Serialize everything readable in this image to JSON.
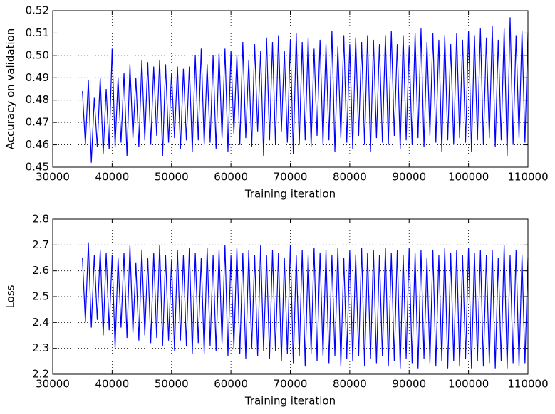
{
  "chart_data": [
    {
      "type": "line",
      "xlabel": "Training iteration",
      "ylabel": "Accuracy on validation",
      "xlim": [
        30000,
        110000
      ],
      "xticks": [
        30000,
        40000,
        50000,
        60000,
        70000,
        80000,
        90000,
        100000,
        110000
      ],
      "ylim": [
        0.45,
        0.52
      ],
      "yticks": [
        0.45,
        0.46,
        0.47,
        0.48,
        0.49,
        {
          "value": 0.5,
          "label": "0.50"
        },
        0.51,
        0.52
      ],
      "grid": true,
      "x": [
        35000,
        35500,
        36000,
        36500,
        37000,
        37500,
        38000,
        38500,
        39000,
        39500,
        40000,
        40500,
        41000,
        41500,
        42000,
        42500,
        43000,
        43500,
        44000,
        44500,
        45000,
        45500,
        46000,
        46500,
        47000,
        47500,
        48000,
        48500,
        49000,
        49500,
        50000,
        50500,
        51000,
        51500,
        52000,
        52500,
        53000,
        53500,
        54000,
        54500,
        55000,
        55500,
        56000,
        56500,
        57000,
        57500,
        58000,
        58500,
        59000,
        59500,
        60000,
        60500,
        61000,
        61500,
        62000,
        62500,
        63000,
        63500,
        64000,
        64500,
        65000,
        65500,
        66000,
        66500,
        67000,
        67500,
        68000,
        68500,
        69000,
        69500,
        70000,
        70500,
        71000,
        71500,
        72000,
        72500,
        73000,
        73500,
        74000,
        74500,
        75000,
        75500,
        76000,
        76500,
        77000,
        77500,
        78000,
        78500,
        79000,
        79500,
        80000,
        80500,
        81000,
        81500,
        82000,
        82500,
        83000,
        83500,
        84000,
        84500,
        85000,
        85500,
        86000,
        86500,
        87000,
        87500,
        88000,
        88500,
        89000,
        89500,
        90000,
        90500,
        91000,
        91500,
        92000,
        92500,
        93000,
        93500,
        94000,
        94500,
        95000,
        95500,
        96000,
        96500,
        97000,
        97500,
        98000,
        98500,
        99000,
        99500,
        100000,
        100500,
        101000,
        101500,
        102000,
        102500,
        103000,
        103500,
        104000,
        104500,
        105000,
        105500,
        106000,
        106500,
        107000,
        107500,
        108000,
        108500,
        109000,
        109500,
        110000
      ],
      "series": [
        {
          "color": "#0000ff",
          "values": [
            0.484,
            0.46,
            0.489,
            0.452,
            0.481,
            0.459,
            0.49,
            0.456,
            0.485,
            0.458,
            0.503,
            0.459,
            0.49,
            0.461,
            0.492,
            0.455,
            0.496,
            0.463,
            0.49,
            0.459,
            0.498,
            0.462,
            0.497,
            0.46,
            0.495,
            0.464,
            0.498,
            0.455,
            0.496,
            0.461,
            0.492,
            0.463,
            0.495,
            0.458,
            0.494,
            0.462,
            0.495,
            0.457,
            0.5,
            0.462,
            0.503,
            0.46,
            0.496,
            0.461,
            0.5,
            0.458,
            0.501,
            0.463,
            0.503,
            0.457,
            0.502,
            0.465,
            0.5,
            0.46,
            0.506,
            0.463,
            0.498,
            0.459,
            0.505,
            0.466,
            0.502,
            0.455,
            0.508,
            0.462,
            0.506,
            0.46,
            0.509,
            0.466,
            0.502,
            0.461,
            0.507,
            0.456,
            0.51,
            0.46,
            0.506,
            0.462,
            0.508,
            0.459,
            0.503,
            0.464,
            0.507,
            0.46,
            0.505,
            0.462,
            0.511,
            0.457,
            0.504,
            0.463,
            0.509,
            0.461,
            0.505,
            0.458,
            0.508,
            0.464,
            0.506,
            0.46,
            0.509,
            0.457,
            0.507,
            0.463,
            0.505,
            0.461,
            0.509,
            0.46,
            0.511,
            0.464,
            0.505,
            0.458,
            0.509,
            0.462,
            0.504,
            0.46,
            0.51,
            0.463,
            0.512,
            0.459,
            0.506,
            0.464,
            0.51,
            0.461,
            0.507,
            0.457,
            0.509,
            0.462,
            0.505,
            0.46,
            0.51,
            0.463,
            0.507,
            0.461,
            0.511,
            0.457,
            0.509,
            0.462,
            0.512,
            0.46,
            0.508,
            0.463,
            0.513,
            0.459,
            0.507,
            0.462,
            0.512,
            0.455,
            0.517,
            0.46,
            0.509,
            0.463,
            0.511,
            0.461,
            0.51
          ]
        }
      ]
    },
    {
      "type": "line",
      "xlabel": "Training iteration",
      "ylabel": "Loss",
      "xlim": [
        30000,
        110000
      ],
      "xticks": [
        30000,
        40000,
        50000,
        60000,
        70000,
        80000,
        90000,
        100000,
        110000
      ],
      "ylim": [
        2.2,
        2.8
      ],
      "yticks": [
        2.2,
        2.3,
        2.4,
        2.5,
        2.6,
        2.7,
        2.8
      ],
      "grid": true,
      "x": [
        35000,
        35500,
        36000,
        36500,
        37000,
        37500,
        38000,
        38500,
        39000,
        39500,
        40000,
        40500,
        41000,
        41500,
        42000,
        42500,
        43000,
        43500,
        44000,
        44500,
        45000,
        45500,
        46000,
        46500,
        47000,
        47500,
        48000,
        48500,
        49000,
        49500,
        50000,
        50500,
        51000,
        51500,
        52000,
        52500,
        53000,
        53500,
        54000,
        54500,
        55000,
        55500,
        56000,
        56500,
        57000,
        57500,
        58000,
        58500,
        59000,
        59500,
        60000,
        60500,
        61000,
        61500,
        62000,
        62500,
        63000,
        63500,
        64000,
        64500,
        65000,
        65500,
        66000,
        66500,
        67000,
        67500,
        68000,
        68500,
        69000,
        69500,
        70000,
        70500,
        71000,
        71500,
        72000,
        72500,
        73000,
        73500,
        74000,
        74500,
        75000,
        75500,
        76000,
        76500,
        77000,
        77500,
        78000,
        78500,
        79000,
        79500,
        80000,
        80500,
        81000,
        81500,
        82000,
        82500,
        83000,
        83500,
        84000,
        84500,
        85000,
        85500,
        86000,
        86500,
        87000,
        87500,
        88000,
        88500,
        89000,
        89500,
        90000,
        90500,
        91000,
        91500,
        92000,
        92500,
        93000,
        93500,
        94000,
        94500,
        95000,
        95500,
        96000,
        96500,
        97000,
        97500,
        98000,
        98500,
        99000,
        99500,
        100000,
        100500,
        101000,
        101500,
        102000,
        102500,
        103000,
        103500,
        104000,
        104500,
        105000,
        105500,
        106000,
        106500,
        107000,
        107500,
        108000,
        108500,
        109000,
        109500,
        110000
      ],
      "series": [
        {
          "color": "#0000ff",
          "values": [
            2.65,
            2.4,
            2.71,
            2.38,
            2.66,
            2.41,
            2.68,
            2.35,
            2.67,
            2.37,
            2.66,
            2.3,
            2.65,
            2.38,
            2.67,
            2.34,
            2.7,
            2.36,
            2.63,
            2.33,
            2.68,
            2.35,
            2.65,
            2.32,
            2.67,
            2.34,
            2.7,
            2.31,
            2.66,
            2.33,
            2.64,
            2.29,
            2.68,
            2.33,
            2.66,
            2.31,
            2.69,
            2.28,
            2.67,
            2.32,
            2.65,
            2.28,
            2.69,
            2.31,
            2.66,
            2.29,
            2.68,
            2.32,
            2.7,
            2.27,
            2.66,
            2.3,
            2.69,
            2.28,
            2.67,
            2.26,
            2.68,
            2.3,
            2.66,
            2.27,
            2.7,
            2.29,
            2.66,
            2.26,
            2.68,
            2.29,
            2.67,
            2.25,
            2.65,
            2.28,
            2.7,
            2.24,
            2.66,
            2.27,
            2.68,
            2.23,
            2.66,
            2.28,
            2.69,
            2.25,
            2.67,
            2.27,
            2.68,
            2.24,
            2.66,
            2.27,
            2.69,
            2.23,
            2.65,
            2.26,
            2.68,
            2.25,
            2.66,
            2.27,
            2.69,
            2.23,
            2.67,
            2.26,
            2.68,
            2.24,
            2.66,
            2.27,
            2.69,
            2.23,
            2.67,
            2.25,
            2.68,
            2.22,
            2.66,
            2.26,
            2.69,
            2.24,
            2.67,
            2.22,
            2.68,
            2.26,
            2.65,
            2.24,
            2.68,
            2.23,
            2.66,
            2.25,
            2.69,
            2.22,
            2.67,
            2.25,
            2.68,
            2.23,
            2.66,
            2.26,
            2.69,
            2.22,
            2.67,
            2.25,
            2.68,
            2.23,
            2.66,
            2.24,
            2.68,
            2.22,
            2.65,
            2.25,
            2.7,
            2.22,
            2.66,
            2.24,
            2.68,
            2.23,
            2.66,
            2.24,
            2.65
          ]
        }
      ]
    }
  ]
}
